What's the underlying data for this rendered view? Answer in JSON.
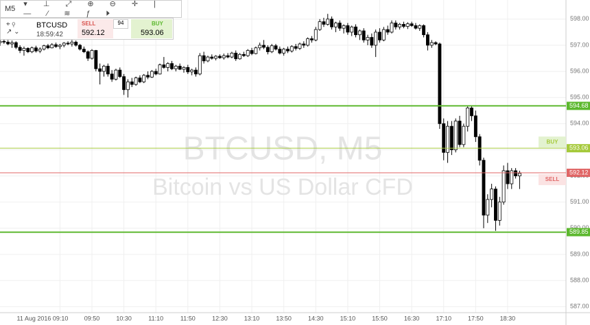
{
  "toolbar": {
    "timeframe": "M5"
  },
  "symbol_panel": {
    "symbol": "BTCUSD",
    "time": "18:59:42",
    "sell_label": "SELL",
    "sell_price": "592.12",
    "spread": "94",
    "buy_label": "BUY",
    "buy_price": "593.06"
  },
  "watermark": {
    "line1": "BTCUSD, M5",
    "line2": "Bitcoin vs US Dollar CFD"
  },
  "chart_data": {
    "type": "candlestick",
    "x": [
      475,
      480,
      485,
      490,
      495,
      500,
      505,
      510,
      515,
      520,
      525,
      530,
      535,
      540,
      545,
      550,
      555,
      560,
      565,
      570,
      575,
      580,
      585,
      590,
      595,
      600,
      605,
      610,
      615,
      620,
      625,
      630,
      635,
      640,
      645,
      650,
      655,
      660,
      665,
      670,
      675,
      680,
      685,
      690,
      695,
      700,
      705,
      710,
      715,
      720,
      725,
      730,
      735,
      740,
      745,
      750,
      755,
      760,
      765,
      770,
      775,
      780,
      785,
      790,
      795,
      800,
      805,
      810,
      815,
      820,
      825,
      830,
      835,
      840,
      845,
      850,
      855,
      860,
      865,
      870,
      875,
      880,
      885,
      890,
      895,
      900,
      905,
      910,
      915,
      920,
      925,
      930,
      935,
      940,
      945,
      950,
      955,
      960,
      965,
      970,
      975,
      980,
      985,
      990,
      995,
      1000,
      1005,
      1010,
      1015,
      1020,
      1025,
      1030,
      1035,
      1040,
      1045,
      1050,
      1055,
      1060,
      1065,
      1070,
      1075,
      1080,
      1085,
      1090,
      1095,
      1100,
      1105,
      1110,
      1115,
      1120,
      1125
    ],
    "ohlc": [
      [
        597.1,
        597.22,
        596.98,
        597.15
      ],
      [
        597.15,
        597.25,
        597.05,
        597.12
      ],
      [
        597.12,
        597.2,
        597.0,
        597.05
      ],
      [
        597.05,
        597.18,
        596.9,
        597.1
      ],
      [
        597.1,
        597.15,
        596.85,
        596.92
      ],
      [
        596.92,
        597.0,
        596.7,
        596.8
      ],
      [
        596.8,
        596.95,
        596.6,
        596.88
      ],
      [
        596.88,
        596.92,
        596.7,
        596.75
      ],
      [
        596.75,
        596.95,
        596.7,
        596.9
      ],
      [
        596.9,
        596.98,
        596.72,
        596.78
      ],
      [
        596.78,
        596.92,
        596.7,
        596.85
      ],
      [
        596.85,
        597.02,
        596.8,
        596.98
      ],
      [
        596.98,
        597.05,
        596.85,
        596.9
      ],
      [
        596.9,
        597.08,
        596.88,
        597.02
      ],
      [
        597.02,
        597.1,
        596.9,
        596.95
      ],
      [
        596.95,
        597.05,
        596.85,
        597.0
      ],
      [
        597.0,
        597.12,
        596.92,
        597.08
      ],
      [
        597.08,
        597.15,
        597.0,
        597.05
      ],
      [
        597.05,
        597.2,
        596.95,
        597.12
      ],
      [
        597.12,
        597.18,
        596.95,
        597.0
      ],
      [
        597.0,
        597.05,
        596.8,
        596.85
      ],
      [
        596.85,
        596.95,
        596.7,
        596.75
      ],
      [
        596.75,
        596.8,
        596.4,
        596.5
      ],
      [
        596.5,
        596.85,
        596.45,
        596.8
      ],
      [
        596.8,
        596.82,
        596.0,
        596.1
      ],
      [
        596.1,
        596.3,
        595.5,
        596.0
      ],
      [
        596.0,
        596.25,
        595.8,
        596.2
      ],
      [
        596.2,
        596.3,
        595.8,
        595.9
      ],
      [
        595.9,
        596.05,
        595.6,
        595.7
      ],
      [
        595.7,
        596.1,
        595.65,
        596.05
      ],
      [
        596.05,
        596.15,
        595.75,
        595.8
      ],
      [
        595.8,
        595.9,
        595.1,
        595.3
      ],
      [
        595.3,
        595.7,
        595.0,
        595.6
      ],
      [
        595.6,
        595.75,
        595.4,
        595.5
      ],
      [
        595.5,
        595.8,
        595.45,
        595.75
      ],
      [
        595.75,
        595.85,
        595.55,
        595.6
      ],
      [
        595.6,
        595.9,
        595.55,
        595.85
      ],
      [
        595.85,
        596.0,
        595.7,
        595.78
      ],
      [
        595.78,
        596.05,
        595.75,
        596.0
      ],
      [
        596.0,
        596.1,
        595.85,
        595.9
      ],
      [
        595.9,
        596.3,
        595.88,
        596.25
      ],
      [
        596.25,
        596.55,
        596.1,
        596.15
      ],
      [
        596.15,
        596.35,
        596.0,
        596.3
      ],
      [
        596.3,
        596.4,
        596.05,
        596.1
      ],
      [
        596.1,
        596.25,
        596.0,
        596.2
      ],
      [
        596.2,
        596.3,
        596.05,
        596.08
      ],
      [
        596.08,
        596.2,
        595.95,
        596.15
      ],
      [
        596.15,
        596.25,
        595.9,
        595.98
      ],
      [
        595.98,
        596.1,
        595.85,
        596.05
      ],
      [
        596.05,
        596.15,
        595.8,
        595.9
      ],
      [
        595.9,
        596.7,
        595.85,
        596.6
      ],
      [
        596.6,
        596.75,
        596.3,
        596.4
      ],
      [
        596.4,
        596.6,
        596.35,
        596.55
      ],
      [
        596.55,
        596.65,
        596.45,
        596.5
      ],
      [
        596.5,
        596.62,
        596.42,
        596.58
      ],
      [
        596.58,
        596.65,
        596.48,
        596.52
      ],
      [
        596.52,
        596.68,
        596.45,
        596.6
      ],
      [
        596.6,
        596.7,
        596.5,
        596.55
      ],
      [
        596.55,
        596.75,
        596.5,
        596.7
      ],
      [
        596.7,
        596.8,
        596.4,
        596.48
      ],
      [
        596.48,
        596.7,
        596.45,
        596.65
      ],
      [
        596.65,
        596.75,
        596.55,
        596.6
      ],
      [
        596.6,
        596.85,
        596.55,
        596.8
      ],
      [
        596.8,
        596.9,
        596.62,
        596.68
      ],
      [
        596.68,
        596.95,
        596.65,
        596.9
      ],
      [
        596.9,
        597.1,
        596.8,
        597.0
      ],
      [
        597.0,
        597.2,
        596.85,
        596.92
      ],
      [
        596.92,
        597.0,
        596.65,
        596.75
      ],
      [
        596.75,
        597.05,
        596.7,
        596.98
      ],
      [
        596.98,
        597.05,
        596.8,
        596.85
      ],
      [
        596.85,
        596.95,
        596.65,
        596.7
      ],
      [
        596.7,
        596.9,
        596.6,
        596.85
      ],
      [
        596.85,
        596.95,
        596.7,
        596.78
      ],
      [
        596.78,
        597.0,
        596.72,
        596.95
      ],
      [
        596.95,
        597.05,
        596.8,
        596.88
      ],
      [
        596.88,
        597.1,
        596.82,
        597.05
      ],
      [
        597.05,
        597.15,
        596.9,
        597.0
      ],
      [
        597.0,
        597.3,
        596.95,
        597.25
      ],
      [
        597.25,
        597.35,
        597.1,
        597.2
      ],
      [
        597.2,
        597.7,
        597.15,
        597.6
      ],
      [
        597.6,
        598.0,
        597.55,
        597.9
      ],
      [
        597.9,
        598.05,
        597.7,
        597.8
      ],
      [
        597.8,
        598.2,
        597.75,
        598.0
      ],
      [
        598.0,
        598.1,
        597.6,
        597.7
      ],
      [
        597.7,
        597.9,
        597.5,
        597.85
      ],
      [
        597.85,
        597.95,
        597.55,
        597.65
      ],
      [
        597.65,
        597.8,
        597.45,
        597.75
      ],
      [
        597.75,
        597.85,
        597.4,
        597.5
      ],
      [
        597.5,
        597.75,
        597.35,
        597.7
      ],
      [
        597.7,
        597.8,
        597.3,
        597.4
      ],
      [
        597.4,
        597.6,
        597.2,
        597.55
      ],
      [
        597.55,
        597.65,
        597.1,
        597.2
      ],
      [
        597.2,
        597.4,
        597.0,
        597.3
      ],
      [
        597.3,
        597.45,
        596.9,
        597.0
      ],
      [
        597.0,
        597.6,
        596.55,
        597.5
      ],
      [
        597.5,
        597.65,
        597.1,
        597.2
      ],
      [
        597.2,
        597.7,
        597.15,
        597.6
      ],
      [
        597.6,
        597.75,
        597.4,
        597.5
      ],
      [
        597.5,
        597.95,
        597.45,
        597.85
      ],
      [
        597.85,
        597.95,
        597.6,
        597.7
      ],
      [
        597.7,
        597.85,
        597.6,
        597.8
      ],
      [
        597.8,
        597.9,
        597.65,
        597.72
      ],
      [
        597.72,
        597.88,
        597.62,
        597.82
      ],
      [
        597.82,
        597.9,
        597.7,
        597.75
      ],
      [
        597.75,
        597.85,
        597.6,
        597.65
      ],
      [
        597.65,
        597.8,
        597.55,
        597.75
      ],
      [
        597.75,
        597.8,
        597.3,
        597.4
      ],
      [
        597.4,
        597.5,
        596.8,
        597.0
      ],
      [
        597.0,
        597.2,
        596.9,
        597.1
      ],
      [
        597.1,
        597.15,
        597.0,
        597.05
      ],
      [
        597.05,
        597.1,
        593.8,
        594.0
      ],
      [
        594.0,
        594.2,
        592.6,
        592.9
      ],
      [
        592.9,
        594.1,
        592.5,
        593.9
      ],
      [
        593.9,
        594.1,
        592.8,
        593.0
      ],
      [
        593.0,
        594.2,
        592.9,
        594.1
      ],
      [
        594.1,
        594.3,
        593.1,
        593.2
      ],
      [
        593.2,
        594.0,
        593.1,
        593.9
      ],
      [
        593.9,
        594.7,
        593.7,
        594.6
      ],
      [
        594.6,
        594.7,
        594.1,
        594.3
      ],
      [
        594.3,
        594.5,
        593.3,
        593.5
      ],
      [
        593.5,
        593.6,
        592.4,
        592.6
      ],
      [
        592.6,
        592.7,
        590.0,
        590.5
      ],
      [
        590.5,
        591.3,
        590.2,
        591.1
      ],
      [
        591.1,
        591.7,
        590.8,
        591.5
      ],
      [
        591.5,
        591.6,
        589.9,
        590.3
      ],
      [
        590.3,
        591.2,
        590.1,
        591.0
      ],
      [
        591.0,
        592.4,
        590.9,
        592.2
      ],
      [
        592.2,
        592.5,
        591.5,
        591.7
      ],
      [
        591.7,
        592.3,
        591.5,
        592.2
      ],
      [
        592.2,
        592.3,
        591.9,
        592.0
      ],
      [
        592.0,
        592.2,
        591.5,
        592.1
      ]
    ],
    "up_color": "#ffffff",
    "down_color": "#000000",
    "xlim": [
      475,
      1183
    ],
    "xticks": [
      {
        "value": 550,
        "label": "11 Aug 2016 09:10"
      },
      {
        "value": 590,
        "label": "09:50"
      },
      {
        "value": 630,
        "label": "10:30"
      },
      {
        "value": 670,
        "label": "11:10"
      },
      {
        "value": 710,
        "label": "11:50"
      },
      {
        "value": 750,
        "label": "12:30"
      },
      {
        "value": 790,
        "label": "13:10"
      },
      {
        "value": 830,
        "label": "13:50"
      },
      {
        "value": 870,
        "label": "14:30"
      },
      {
        "value": 910,
        "label": "15:10"
      },
      {
        "value": 950,
        "label": "15:50"
      },
      {
        "value": 990,
        "label": "16:30"
      },
      {
        "value": 1030,
        "label": "17:10"
      },
      {
        "value": 1070,
        "label": "17:50"
      },
      {
        "value": 1110,
        "label": "18:30"
      }
    ],
    "ylim": [
      586.77,
      598.73
    ],
    "yticks": [
      {
        "value": 587,
        "label": "587.00"
      },
      {
        "value": 588,
        "label": "588.00"
      },
      {
        "value": 589,
        "label": "589.00"
      },
      {
        "value": 590,
        "label": "590.00"
      },
      {
        "value": 591,
        "label": "591.00"
      },
      {
        "value": 592,
        "label": "592.00"
      },
      {
        "value": 593,
        "label": "593.00"
      },
      {
        "value": 594,
        "label": "594.00"
      },
      {
        "value": 595,
        "label": "595.00"
      },
      {
        "value": 596,
        "label": "596.00"
      },
      {
        "value": 597,
        "label": "597.00"
      },
      {
        "value": 598,
        "label": "598.00"
      }
    ],
    "grid": true,
    "levels": [
      {
        "value": 594.68,
        "color": "#5cb82e",
        "thick": true
      },
      {
        "value": 593.06,
        "color": "#a5c93a",
        "tag": "BUY"
      },
      {
        "value": 592.12,
        "color": "#e06666",
        "tag": "SELL"
      },
      {
        "value": 589.85,
        "color": "#5cb82e",
        "thick": true
      }
    ]
  }
}
